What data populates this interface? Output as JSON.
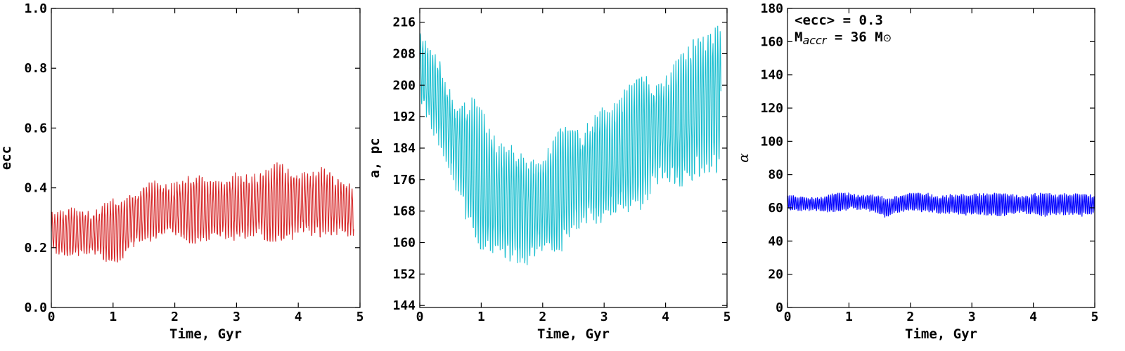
{
  "chart_data": [
    {
      "type": "line",
      "panel": "ecc",
      "xlabel": "Time, Gyr",
      "ylabel": "ecc",
      "xlim": [
        0,
        5
      ],
      "ylim": [
        0.0,
        1.0
      ],
      "xticks": [
        0,
        1,
        2,
        3,
        4,
        5
      ],
      "xtick_labels": [
        "0",
        "1",
        "2",
        "3",
        "4",
        "5"
      ],
      "yticks": [
        0.0,
        0.2,
        0.4,
        0.6,
        0.8,
        1.0
      ],
      "ytick_labels": [
        "0.0",
        "0.2",
        "0.4",
        "0.6",
        "0.8",
        "1.0"
      ],
      "grid": false,
      "color": "#d62728",
      "series": [
        {
          "x": [
            0.0,
            0.5,
            1.0,
            1.2,
            1.5,
            2.0,
            2.5,
            3.0,
            3.5,
            4.0,
            4.5,
            4.9
          ],
          "y_mean": [
            0.25,
            0.25,
            0.25,
            0.27,
            0.32,
            0.33,
            0.32,
            0.34,
            0.34,
            0.35,
            0.35,
            0.32
          ],
          "y_min": [
            0.18,
            0.16,
            0.14,
            0.17,
            0.22,
            0.22,
            0.21,
            0.22,
            0.22,
            0.22,
            0.23,
            0.24
          ],
          "y_max": [
            0.35,
            0.37,
            0.41,
            0.4,
            0.48,
            0.49,
            0.47,
            0.49,
            0.5,
            0.53,
            0.55,
            0.49
          ],
          "oscillation_period": 0.045
        }
      ]
    },
    {
      "type": "line",
      "panel": "a",
      "xlabel": "Time, Gyr",
      "ylabel": "a, pc",
      "xlim": [
        0,
        5
      ],
      "ylim": [
        143.5,
        219.5
      ],
      "xticks": [
        0,
        1,
        2,
        3,
        4,
        5
      ],
      "xtick_labels": [
        "0",
        "1",
        "2",
        "3",
        "4",
        "5"
      ],
      "yticks": [
        144,
        152,
        160,
        168,
        176,
        184,
        192,
        200,
        208,
        216
      ],
      "ytick_labels": [
        "144",
        "152",
        "160",
        "168",
        "176",
        "184",
        "192",
        "200",
        "208",
        "216"
      ],
      "grid": false,
      "color": "#17becf",
      "series": [
        {
          "x": [
            0.0,
            0.3,
            0.6,
            1.0,
            1.4,
            1.8,
            2.0,
            2.3,
            2.7,
            3.0,
            3.5,
            4.0,
            4.5,
            4.9
          ],
          "y_mean": [
            205,
            196,
            184,
            176,
            170,
            168,
            170,
            174,
            177,
            180,
            185,
            189,
            194,
            196
          ],
          "y_min": [
            196,
            184,
            170,
            158,
            147,
            146,
            149,
            156,
            160,
            162,
            166,
            170,
            175,
            178
          ],
          "y_max": [
            218,
            211,
            203,
            194,
            186,
            184,
            183,
            189,
            192,
            196,
            201,
            206,
            213,
            218
          ],
          "oscillation_period": 0.04
        }
      ]
    },
    {
      "type": "line",
      "panel": "alpha",
      "xlabel": "Time, Gyr",
      "ylabel": "α",
      "xlim": [
        0,
        5
      ],
      "ylim": [
        0,
        180
      ],
      "xticks": [
        0,
        1,
        2,
        3,
        4,
        5
      ],
      "xtick_labels": [
        "0",
        "1",
        "2",
        "3",
        "4",
        "5"
      ],
      "yticks": [
        0,
        20,
        40,
        60,
        80,
        100,
        120,
        140,
        160,
        180
      ],
      "ytick_labels": [
        "0",
        "20",
        "40",
        "60",
        "80",
        "100",
        "120",
        "140",
        "160",
        "180"
      ],
      "grid": false,
      "color": "#0000ff",
      "annotations": {
        "line1": "<ecc> = 0.3",
        "line2_prefix": "M",
        "line2_sub": "accr",
        "line2_mid": " = 36 M",
        "line2_symbol": "⊙"
      },
      "series": [
        {
          "x": [
            0.0,
            0.5,
            1.0,
            1.5,
            1.6,
            2.0,
            2.5,
            3.0,
            3.5,
            4.0,
            4.5,
            5.0
          ],
          "y_mean": [
            63,
            62,
            64,
            62,
            60,
            64,
            62,
            62,
            62,
            62,
            62,
            62
          ],
          "y_min": [
            58,
            57,
            58,
            54,
            52,
            56,
            55,
            55,
            55,
            55,
            54,
            54
          ],
          "y_max": [
            68,
            69,
            69,
            68,
            67,
            69,
            69,
            69,
            69,
            69,
            69,
            69
          ],
          "oscillation_period": 0.03
        }
      ]
    }
  ]
}
